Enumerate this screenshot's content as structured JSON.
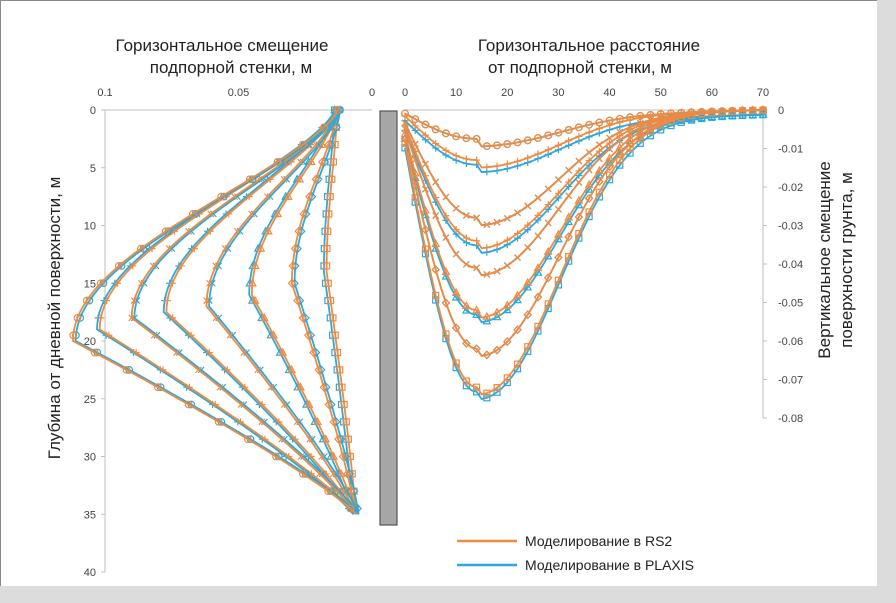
{
  "colors": {
    "rs2": "#F08A40",
    "plaxis": "#2AA9DE",
    "wall": "#A6A6A6",
    "axis": "#BFBFBF"
  },
  "chart_data": [
    {
      "type": "line",
      "title": "Горизонтальное смещение подпорной стенки, м",
      "title_lines": [
        "Горизонтальное смещение",
        "подпорной стенки, м"
      ],
      "xlabel": "Горизонтальное смещение подпорной стенки, м",
      "ylabel": "Глубина от дневной поверхности, м",
      "xlim": [
        0.1,
        0
      ],
      "ylim": [
        0,
        40
      ],
      "xticks": [
        "0.1",
        "0.05",
        "0"
      ],
      "xtick_values": [
        0.1,
        0.05,
        0
      ],
      "yticks": [
        "0",
        "5",
        "10",
        "15",
        "20",
        "25",
        "30",
        "35",
        "40"
      ],
      "ytick_values": [
        0,
        5,
        10,
        15,
        20,
        25,
        30,
        35,
        40
      ],
      "x_reversed": true,
      "stages": [
        {
          "max": 0.017,
          "at": 14
        },
        {
          "max": 0.03,
          "at": 15
        },
        {
          "max": 0.045,
          "at": 16
        },
        {
          "max": 0.062,
          "at": 17
        },
        {
          "max": 0.077,
          "at": 17.5
        },
        {
          "max": 0.09,
          "at": 18
        },
        {
          "max": 0.102,
          "at": 19
        },
        {
          "max": 0.112,
          "at": 20
        }
      ],
      "series": [
        {
          "name": "Моделирование в RS2",
          "color": "#F08A40"
        },
        {
          "name": "Моделирование в PLAXIS",
          "color": "#2AA9DE"
        }
      ]
    },
    {
      "type": "line",
      "title": "Горизонтальное расстояние от подпорной стенки, м",
      "title_lines": [
        "Горизонтальное расстояние",
        "от подпорной стенки, м"
      ],
      "xlabel": "Горизонтальное расстояние от подпорной стенки, м",
      "ylabel": "Вертикальное смещение поверхности грунта, м",
      "ylabel_lines": [
        "Вертикальное смещение",
        "поверхности грунта, м"
      ],
      "xlim": [
        0,
        70
      ],
      "ylim": [
        -0.08,
        0
      ],
      "xticks": [
        "0",
        "10",
        "20",
        "30",
        "40",
        "50",
        "60",
        "70"
      ],
      "xtick_values": [
        0,
        10,
        20,
        30,
        40,
        50,
        60,
        70
      ],
      "yticks": [
        "0",
        "-0.01",
        "-0.02",
        "-0.03",
        "-0.04",
        "-0.05",
        "-0.06",
        "-0.07",
        "-0.08"
      ],
      "ytick_values": [
        0,
        -0.01,
        -0.02,
        -0.03,
        -0.04,
        -0.05,
        -0.06,
        -0.07,
        -0.08
      ],
      "stages": [
        {
          "min": -0.0075,
          "at": 14
        },
        {
          "min": -0.013,
          "at": 14
        },
        {
          "min": -0.028,
          "at": 14
        },
        {
          "min": -0.034,
          "at": 14
        },
        {
          "min": -0.041,
          "at": 14
        },
        {
          "min": -0.052,
          "at": 14
        },
        {
          "min": -0.062,
          "at": 14
        },
        {
          "min": -0.072,
          "at": 14
        }
      ],
      "series": [
        {
          "name": "Моделирование в RS2",
          "color": "#F08A40"
        },
        {
          "name": "Моделирование в PLAXIS",
          "color": "#2AA9DE"
        }
      ]
    }
  ],
  "legend": {
    "items": [
      {
        "label": "Моделирование в RS2"
      },
      {
        "label": "Моделирование в PLAXIS"
      }
    ],
    "placement": "bottom-right"
  }
}
